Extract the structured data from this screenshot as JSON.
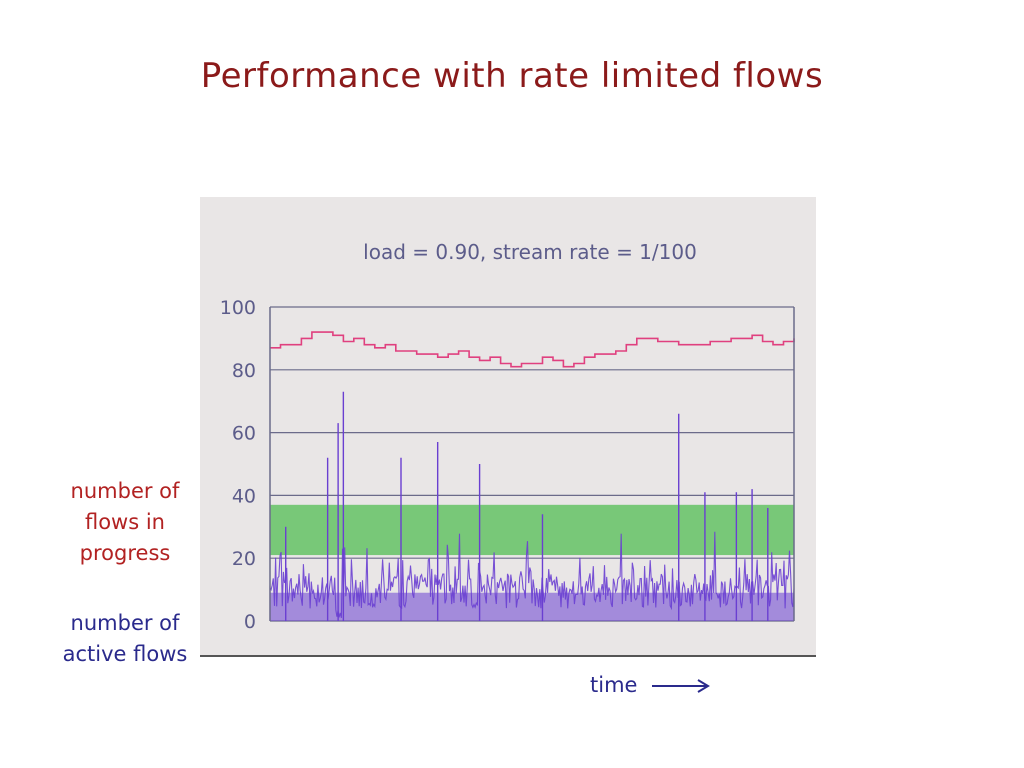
{
  "slide": {
    "title": "Performance with rate limited flows",
    "label_in_progress": "number of flows in progress",
    "label_active": "number of active flows",
    "time_label": "time"
  },
  "colors": {
    "title": "#8b1a1a",
    "in_progress_line": "#e0407f",
    "active_flows": "#6a3fd1",
    "band": "#6cc46c",
    "panel_bg": "#e9e6e6"
  },
  "chart_data": {
    "type": "line",
    "title": "load = 0.90, stream rate = 1/100",
    "xlabel": "",
    "ylabel": "",
    "ylim": [
      0,
      100
    ],
    "yticks": [
      0,
      20,
      40,
      60,
      80,
      100
    ],
    "grid": true,
    "band": {
      "from": 21,
      "to": 37
    },
    "series": [
      {
        "x": [
          0,
          2,
          4,
          6,
          8,
          10,
          12,
          14,
          16,
          18,
          20,
          22,
          24,
          26,
          28,
          30,
          32,
          34,
          36,
          38,
          40,
          42,
          44,
          46,
          48,
          50,
          52,
          54,
          56,
          58,
          60,
          62,
          64,
          66,
          68,
          70,
          72,
          74,
          76,
          78,
          80,
          82,
          84,
          86,
          88,
          90,
          92,
          94,
          96,
          98,
          100
        ],
        "values": [
          87,
          88,
          88,
          90,
          92,
          92,
          91,
          89,
          90,
          88,
          87,
          88,
          86,
          86,
          85,
          85,
          84,
          85,
          86,
          84,
          83,
          84,
          82,
          81,
          82,
          82,
          84,
          83,
          81,
          82,
          84,
          85,
          85,
          86,
          88,
          90,
          90,
          89,
          89,
          88,
          88,
          88,
          89,
          89,
          90,
          90,
          91,
          89,
          88,
          89,
          90
        ]
      },
      {
        "x": [
          3,
          11,
          13,
          14,
          25,
          32,
          40,
          52,
          78,
          83,
          89,
          92,
          95
        ],
        "values": [
          30,
          52,
          63,
          73,
          52,
          57,
          50,
          34,
          66,
          41,
          41,
          42,
          36
        ]
      }
    ]
  }
}
